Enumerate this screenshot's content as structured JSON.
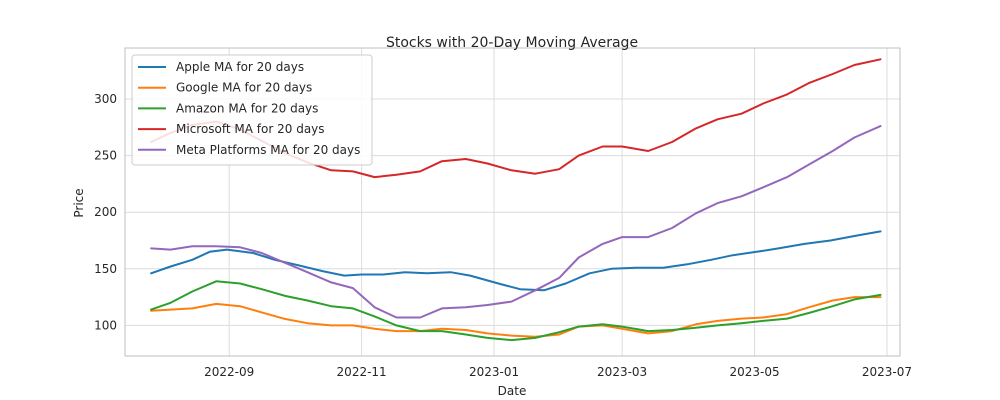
{
  "chart_data": {
    "type": "line",
    "title": "Stocks with 20-Day Moving Average",
    "xlabel": "Date",
    "ylabel": "Price",
    "xlim": [
      "2022-07-15",
      "2023-07-07"
    ],
    "ylim": [
      73,
      345
    ],
    "xticks": [
      "2022-09-01",
      "2022-11-01",
      "2023-01-01",
      "2023-03-01",
      "2023-05-01",
      "2023-07-01"
    ],
    "xtick_labels": [
      "2022-09",
      "2022-11",
      "2023-01",
      "2023-03",
      "2023-05",
      "2023-07"
    ],
    "yticks": [
      100,
      150,
      200,
      250,
      300
    ],
    "ytick_labels": [
      "100",
      "150",
      "200",
      "250",
      "300"
    ],
    "grid": true,
    "legend_position": "upper-left",
    "series": [
      {
        "name": "Apple MA for 20 days",
        "color": "#1f77b4",
        "points": [
          [
            "2022-07-27",
            146
          ],
          [
            "2022-08-05",
            152
          ],
          [
            "2022-08-15",
            158
          ],
          [
            "2022-08-23",
            165
          ],
          [
            "2022-08-31",
            167
          ],
          [
            "2022-09-12",
            164
          ],
          [
            "2022-09-22",
            158
          ],
          [
            "2022-10-03",
            153
          ],
          [
            "2022-10-14",
            148
          ],
          [
            "2022-10-24",
            144
          ],
          [
            "2022-11-01",
            145
          ],
          [
            "2022-11-11",
            145
          ],
          [
            "2022-11-21",
            147
          ],
          [
            "2022-12-01",
            146
          ],
          [
            "2022-12-12",
            147
          ],
          [
            "2022-12-21",
            144
          ],
          [
            "2023-01-03",
            137
          ],
          [
            "2023-01-13",
            132
          ],
          [
            "2023-01-24",
            131
          ],
          [
            "2023-02-03",
            137
          ],
          [
            "2023-02-14",
            146
          ],
          [
            "2023-02-24",
            150
          ],
          [
            "2023-03-08",
            151
          ],
          [
            "2023-03-20",
            151
          ],
          [
            "2023-03-31",
            154
          ],
          [
            "2023-04-11",
            158
          ],
          [
            "2023-04-21",
            162
          ],
          [
            "2023-05-02",
            165
          ],
          [
            "2023-05-12",
            168
          ],
          [
            "2023-05-24",
            172
          ],
          [
            "2023-06-05",
            175
          ],
          [
            "2023-06-16",
            179
          ],
          [
            "2023-06-28",
            183
          ]
        ]
      },
      {
        "name": "Google MA for 20 days",
        "color": "#ff7f0e",
        "points": [
          [
            "2022-07-27",
            113
          ],
          [
            "2022-08-05",
            114
          ],
          [
            "2022-08-15",
            115
          ],
          [
            "2022-08-26",
            119
          ],
          [
            "2022-09-06",
            117
          ],
          [
            "2022-09-15",
            112
          ],
          [
            "2022-09-26",
            106
          ],
          [
            "2022-10-07",
            102
          ],
          [
            "2022-10-18",
            100
          ],
          [
            "2022-10-28",
            100
          ],
          [
            "2022-11-07",
            97
          ],
          [
            "2022-11-17",
            95
          ],
          [
            "2022-11-28",
            95
          ],
          [
            "2022-12-08",
            97
          ],
          [
            "2022-12-19",
            96
          ],
          [
            "2022-12-29",
            93
          ],
          [
            "2023-01-09",
            91
          ],
          [
            "2023-01-20",
            90
          ],
          [
            "2023-01-31",
            92
          ],
          [
            "2023-02-09",
            99
          ],
          [
            "2023-02-20",
            100
          ],
          [
            "2023-03-01",
            97
          ],
          [
            "2023-03-13",
            93
          ],
          [
            "2023-03-24",
            95
          ],
          [
            "2023-04-04",
            101
          ],
          [
            "2023-04-14",
            104
          ],
          [
            "2023-04-25",
            106
          ],
          [
            "2023-05-05",
            107
          ],
          [
            "2023-05-16",
            110
          ],
          [
            "2023-05-26",
            116
          ],
          [
            "2023-06-06",
            122
          ],
          [
            "2023-06-16",
            125
          ],
          [
            "2023-06-28",
            125
          ]
        ]
      },
      {
        "name": "Amazon MA for 20 days",
        "color": "#2ca02c",
        "points": [
          [
            "2022-07-27",
            114
          ],
          [
            "2022-08-05",
            120
          ],
          [
            "2022-08-15",
            130
          ],
          [
            "2022-08-26",
            139
          ],
          [
            "2022-09-06",
            137
          ],
          [
            "2022-09-16",
            132
          ],
          [
            "2022-09-27",
            126
          ],
          [
            "2022-10-07",
            122
          ],
          [
            "2022-10-18",
            117
          ],
          [
            "2022-10-28",
            115
          ],
          [
            "2022-11-07",
            108
          ],
          [
            "2022-11-17",
            100
          ],
          [
            "2022-11-28",
            95
          ],
          [
            "2022-12-08",
            95
          ],
          [
            "2022-12-19",
            92
          ],
          [
            "2022-12-29",
            89
          ],
          [
            "2023-01-09",
            87
          ],
          [
            "2023-01-20",
            89
          ],
          [
            "2023-01-31",
            94
          ],
          [
            "2023-02-09",
            99
          ],
          [
            "2023-02-20",
            101
          ],
          [
            "2023-03-01",
            99
          ],
          [
            "2023-03-13",
            95
          ],
          [
            "2023-03-24",
            96
          ],
          [
            "2023-04-04",
            98
          ],
          [
            "2023-04-14",
            100
          ],
          [
            "2023-04-25",
            102
          ],
          [
            "2023-05-05",
            104
          ],
          [
            "2023-05-16",
            106
          ],
          [
            "2023-05-26",
            111
          ],
          [
            "2023-06-06",
            117
          ],
          [
            "2023-06-16",
            123
          ],
          [
            "2023-06-28",
            127
          ]
        ]
      },
      {
        "name": "Microsoft MA for 20 days",
        "color": "#d62728",
        "points": [
          [
            "2022-07-27",
            262
          ],
          [
            "2022-08-05",
            270
          ],
          [
            "2022-08-15",
            277
          ],
          [
            "2022-08-26",
            280
          ],
          [
            "2022-09-06",
            273
          ],
          [
            "2022-09-16",
            263
          ],
          [
            "2022-09-27",
            252
          ],
          [
            "2022-10-07",
            244
          ],
          [
            "2022-10-18",
            237
          ],
          [
            "2022-10-28",
            236
          ],
          [
            "2022-11-07",
            231
          ],
          [
            "2022-11-17",
            233
          ],
          [
            "2022-11-28",
            236
          ],
          [
            "2022-12-08",
            245
          ],
          [
            "2022-12-19",
            247
          ],
          [
            "2022-12-29",
            243
          ],
          [
            "2023-01-09",
            237
          ],
          [
            "2023-01-20",
            234
          ],
          [
            "2023-01-31",
            238
          ],
          [
            "2023-02-09",
            250
          ],
          [
            "2023-02-20",
            258
          ],
          [
            "2023-03-01",
            258
          ],
          [
            "2023-03-13",
            254
          ],
          [
            "2023-03-24",
            262
          ],
          [
            "2023-04-04",
            274
          ],
          [
            "2023-04-14",
            282
          ],
          [
            "2023-04-25",
            287
          ],
          [
            "2023-05-05",
            296
          ],
          [
            "2023-05-16",
            304
          ],
          [
            "2023-05-26",
            314
          ],
          [
            "2023-06-06",
            322
          ],
          [
            "2023-06-16",
            330
          ],
          [
            "2023-06-28",
            335
          ]
        ]
      },
      {
        "name": "Meta Platforms MA for 20 days",
        "color": "#9467bd",
        "points": [
          [
            "2022-07-27",
            168
          ],
          [
            "2022-08-05",
            167
          ],
          [
            "2022-08-15",
            170
          ],
          [
            "2022-08-26",
            170
          ],
          [
            "2022-09-06",
            169
          ],
          [
            "2022-09-16",
            164
          ],
          [
            "2022-09-27",
            155
          ],
          [
            "2022-10-07",
            147
          ],
          [
            "2022-10-18",
            138
          ],
          [
            "2022-10-28",
            133
          ],
          [
            "2022-11-07",
            116
          ],
          [
            "2022-11-17",
            107
          ],
          [
            "2022-11-28",
            107
          ],
          [
            "2022-12-08",
            115
          ],
          [
            "2022-12-19",
            116
          ],
          [
            "2022-12-29",
            118
          ],
          [
            "2023-01-09",
            121
          ],
          [
            "2023-01-20",
            131
          ],
          [
            "2023-01-31",
            142
          ],
          [
            "2023-02-09",
            160
          ],
          [
            "2023-02-20",
            172
          ],
          [
            "2023-03-01",
            178
          ],
          [
            "2023-03-13",
            178
          ],
          [
            "2023-03-24",
            186
          ],
          [
            "2023-04-04",
            199
          ],
          [
            "2023-04-14",
            208
          ],
          [
            "2023-04-25",
            214
          ],
          [
            "2023-05-05",
            222
          ],
          [
            "2023-05-16",
            231
          ],
          [
            "2023-05-26",
            242
          ],
          [
            "2023-06-06",
            254
          ],
          [
            "2023-06-16",
            266
          ],
          [
            "2023-06-28",
            276
          ]
        ]
      }
    ]
  }
}
